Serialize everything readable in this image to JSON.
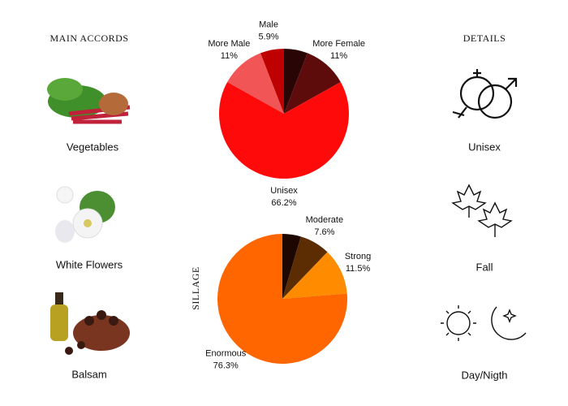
{
  "main_accords": {
    "title": "MAIN ACCORDS",
    "items": [
      "Vegetables",
      "White Flowers",
      "Balsam"
    ]
  },
  "details": {
    "title": "DETAILS",
    "items": [
      "Unisex",
      "Fall",
      "Day/Nigth"
    ]
  },
  "chart_data": [
    {
      "type": "pie",
      "categories": [
        null,
        "More Female",
        "Unisex",
        "More Male",
        "Male"
      ],
      "values": [
        5.9,
        11,
        66.2,
        11,
        5.9
      ],
      "value_labels": [
        null,
        "11%",
        "66.2%",
        "11%",
        "5.9%"
      ],
      "colors": [
        "#2a0505",
        "#5e0b0b",
        "#ff0a0a",
        "#f25555",
        "#bf0000"
      ]
    },
    {
      "type": "pie",
      "title": "SILLAGE",
      "categories": [
        null,
        "Moderate",
        "Strong",
        "Enormous"
      ],
      "values": [
        4.6,
        7.6,
        11.5,
        76.3
      ],
      "value_labels": [
        null,
        "7.6%",
        "11.5%",
        "76.3%"
      ],
      "colors": [
        "#1e0700",
        "#5c2c02",
        "#ff8c00",
        "#ff6600"
      ]
    }
  ]
}
